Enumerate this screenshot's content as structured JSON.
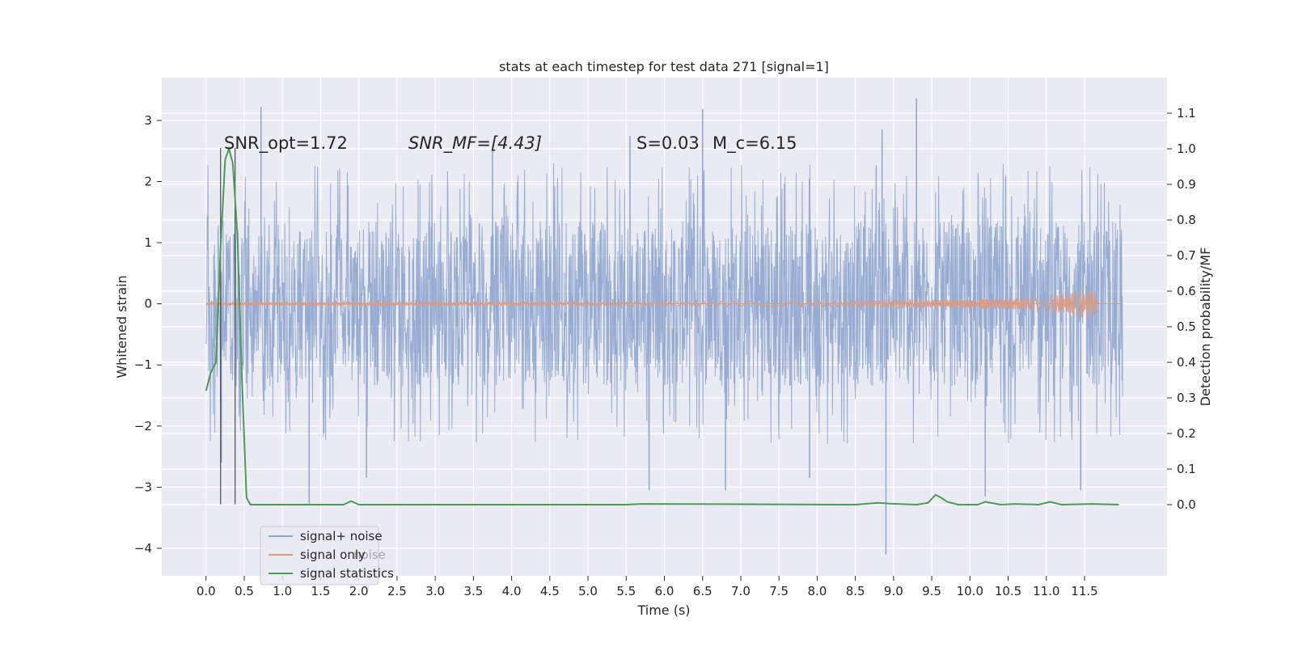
{
  "chart_data": {
    "type": "line",
    "title": "stats at each timestep for test data 271 [signal=1]",
    "xlabel": "Time (s)",
    "ylabel": "Whitened strain",
    "y2label": "Detection probability/MF",
    "xlim": [
      -0.58,
      12.58
    ],
    "ylim": [
      -4.45,
      3.7
    ],
    "y2lim": [
      -0.2,
      1.2
    ],
    "xticks": [
      0.0,
      0.5,
      1.0,
      1.5,
      2.0,
      2.5,
      3.0,
      3.5,
      4.0,
      4.5,
      5.0,
      5.5,
      6.0,
      6.5,
      7.0,
      7.5,
      8.0,
      8.5,
      9.0,
      9.5,
      10.0,
      10.5,
      11.0,
      11.5
    ],
    "xtick_labels": [
      "0.0",
      "0.5",
      "1.0",
      "1.5",
      "2.0",
      "2.5",
      "3.0",
      "3.5",
      "4.0",
      "4.5",
      "5.0",
      "5.5",
      "6.0",
      "6.5",
      "7.0",
      "7.5",
      "8.0",
      "8.5",
      "9.0",
      "9.5",
      "10.0",
      "10.5",
      "11.0",
      "11.5"
    ],
    "yticks": [
      -4,
      -3,
      -2,
      -1,
      0,
      1,
      2,
      3
    ],
    "ytick_labels": [
      "−4",
      "−3",
      "−2",
      "−1",
      "0",
      "1",
      "2",
      "3"
    ],
    "y2ticks": [
      0.0,
      0.1,
      0.2,
      0.3,
      0.4,
      0.5,
      0.6,
      0.7,
      0.8,
      0.9,
      1.0,
      1.1
    ],
    "y2tick_labels": [
      "0.0",
      "0.1",
      "0.2",
      "0.3",
      "0.4",
      "0.5",
      "0.6",
      "0.7",
      "0.8",
      "0.9",
      "1.0",
      "1.1"
    ],
    "grid": true,
    "legend_position": "lower-left",
    "annotations": [
      {
        "text": "SNR_opt=1.72",
        "x": 0.2,
        "y": 2.6
      },
      {
        "text": "SNR_MF=[4.43]",
        "x": 2.6,
        "y": 2.6
      },
      {
        "text": "S=0.03",
        "x": 5.6,
        "y": 2.6
      },
      {
        "text": "M_c=6.15",
        "x": 6.6,
        "y": 2.6
      }
    ],
    "vlines": [
      {
        "x": 0.19,
        "y_start": -3.28,
        "y_end": 2.55
      },
      {
        "x": 0.38,
        "y_start": -3.28,
        "y_end": 2.55
      }
    ],
    "series": [
      {
        "name": "signal+ noise",
        "color": "#8fa5cf",
        "axis": "left",
        "t_start": 0.0,
        "t_end": 12.0,
        "envelope_typical": 1.35,
        "spikes": [
          {
            "x": 0.72,
            "y": 3.22
          },
          {
            "x": 9.3,
            "y": 3.36
          },
          {
            "x": 6.5,
            "y": 3.18
          },
          {
            "x": 8.85,
            "y": 2.85
          },
          {
            "x": 5.55,
            "y": 2.75
          },
          {
            "x": 3.75,
            "y": 2.55
          },
          {
            "x": 1.35,
            "y": -3.3
          },
          {
            "x": 8.9,
            "y": -4.1
          },
          {
            "x": 5.8,
            "y": -3.05
          },
          {
            "x": 6.8,
            "y": -3.05
          },
          {
            "x": 10.2,
            "y": -3.15
          },
          {
            "x": 11.45,
            "y": -3.05
          },
          {
            "x": 2.1,
            "y": -2.85
          },
          {
            "x": 7.9,
            "y": -2.85
          },
          {
            "x": 0.2,
            "y": -2.6
          }
        ]
      },
      {
        "name": "signal only",
        "color": "#dd9a7e",
        "axis": "left",
        "t_start": 0.0,
        "t_end": 11.7,
        "peak_time": 11.65,
        "peak_amplitude": 0.22
      },
      {
        "name": "signal statistics",
        "color": "#4c9a5a",
        "axis": "right",
        "x": [
          0.0,
          0.06,
          0.13,
          0.19,
          0.25,
          0.3,
          0.35,
          0.41,
          0.47,
          0.53,
          0.58,
          0.65,
          1.0,
          1.5,
          1.8,
          1.9,
          2.0,
          5.5,
          5.7,
          8.5,
          8.8,
          8.95,
          9.3,
          9.45,
          9.55,
          9.62,
          9.7,
          9.85,
          10.1,
          10.2,
          10.4,
          10.6,
          10.9,
          11.05,
          11.2,
          11.6,
          11.95
        ],
        "y": [
          0.32,
          0.37,
          0.4,
          0.72,
          0.97,
          1.0,
          0.96,
          0.76,
          0.35,
          0.02,
          0.0,
          0.0,
          0.0,
          0.0,
          0.0,
          0.01,
          0.0,
          0.0,
          0.002,
          0.0,
          0.005,
          0.003,
          0.0,
          0.005,
          0.028,
          0.02,
          0.008,
          0.0,
          0.0,
          0.008,
          0.0,
          0.002,
          0.0,
          0.008,
          0.0,
          0.002,
          0.0
        ]
      }
    ]
  },
  "legend": {
    "items": [
      "signal+ noise",
      "signal only",
      "signal statistics"
    ],
    "ghost_text": "noise"
  },
  "colors": {
    "plot_background": "#eaeaf2",
    "grid": "#ffffff",
    "text": "#262626"
  }
}
